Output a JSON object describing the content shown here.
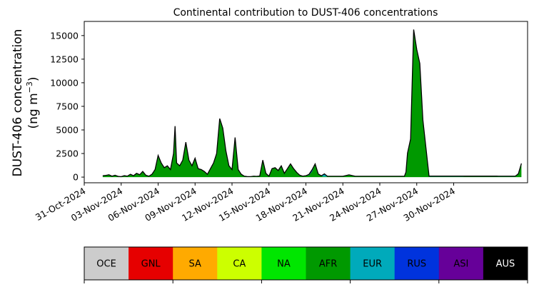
{
  "chart_data": {
    "type": "area",
    "title": "Continental contribution to DUST-406 concentrations",
    "ylabel_line1": "DUST-406 concentration",
    "ylabel_line2_prefix": "(ng m",
    "ylabel_line2_sup": "−3",
    "ylabel_line2_suffix": ")",
    "xlabel": "",
    "x_unit": "date",
    "xlim": [
      "2024-10-31",
      "2024-12-06"
    ],
    "ylim": [
      -600,
      16500
    ],
    "yticks": [
      0,
      2500,
      5000,
      7500,
      10000,
      12500,
      15000
    ],
    "ytick_labels": [
      "0",
      "2500",
      "5000",
      "7500",
      "10000",
      "12500",
      "15000"
    ],
    "xticks": [
      "2024-10-31",
      "2024-11-03",
      "2024-11-06",
      "2024-11-09",
      "2024-11-12",
      "2024-11-15",
      "2024-11-18",
      "2024-11-21",
      "2024-11-24",
      "2024-11-27",
      "2024-11-30"
    ],
    "xtick_labels": [
      "31-Oct-2024",
      "03-Nov-2024",
      "06-Nov-2024",
      "09-Nov-2024",
      "12-Nov-2024",
      "15-Nov-2024",
      "18-Nov-2024",
      "21-Nov-2024",
      "24-Nov-2024",
      "27-Nov-2024",
      "30-Nov-2024"
    ],
    "grid": false,
    "legend_placement": "bottom",
    "series": [
      {
        "name": "OCE",
        "color": "#cccccc",
        "x": [
          "2024-11-01T12:00",
          "2024-12-05T12:00"
        ],
        "values": [
          0,
          0
        ]
      },
      {
        "name": "GNL",
        "color": "#e60000",
        "x": [
          "2024-11-01T12:00",
          "2024-12-05T12:00"
        ],
        "values": [
          0,
          0
        ]
      },
      {
        "name": "SA",
        "color": "#ffaa00",
        "x": [
          "2024-11-01T12:00",
          "2024-12-05T12:00"
        ],
        "values": [
          0,
          0
        ]
      },
      {
        "name": "CA",
        "color": "#ccff00",
        "x": [
          "2024-11-01T12:00",
          "2024-12-05T12:00"
        ],
        "values": [
          0,
          0
        ]
      },
      {
        "name": "NA",
        "color": "#00e600",
        "x": [
          "2024-11-01T12:00",
          "2024-12-05T12:00"
        ],
        "values": [
          0,
          0
        ]
      },
      {
        "name": "AFR",
        "color": "#009900",
        "x": [
          "2024-11-01T12:00",
          "2024-11-01T20:00",
          "2024-11-02T00:00",
          "2024-11-02T06:00",
          "2024-11-02T12:00",
          "2024-11-02T18:00",
          "2024-11-03T00:00",
          "2024-11-03T06:00",
          "2024-11-03T12:00",
          "2024-11-03T18:00",
          "2024-11-04T00:00",
          "2024-11-04T06:00",
          "2024-11-04T12:00",
          "2024-11-04T18:00",
          "2024-11-05T00:00",
          "2024-11-05T06:00",
          "2024-11-05T12:00",
          "2024-11-05T18:00",
          "2024-11-06T00:00",
          "2024-11-06T06:00",
          "2024-11-06T12:00",
          "2024-11-06T18:00",
          "2024-11-07T00:00",
          "2024-11-07T06:00",
          "2024-11-07T09:00",
          "2024-11-07T12:00",
          "2024-11-07T18:00",
          "2024-11-08T00:00",
          "2024-11-08T06:00",
          "2024-11-08T12:00",
          "2024-11-08T18:00",
          "2024-11-09T00:00",
          "2024-11-09T06:00",
          "2024-11-09T12:00",
          "2024-11-09T18:00",
          "2024-11-10T00:00",
          "2024-11-10T06:00",
          "2024-11-10T12:00",
          "2024-11-10T18:00",
          "2024-11-11T00:00",
          "2024-11-11T06:00",
          "2024-11-11T12:00",
          "2024-11-11T18:00",
          "2024-11-12T00:00",
          "2024-11-12T06:00",
          "2024-11-12T12:00",
          "2024-11-12T18:00",
          "2024-11-13T00:00",
          "2024-11-13T06:00",
          "2024-11-13T12:00",
          "2024-11-13T18:00",
          "2024-11-14T00:00",
          "2024-11-14T06:00",
          "2024-11-14T12:00",
          "2024-11-14T18:00",
          "2024-11-15T00:00",
          "2024-11-15T06:00",
          "2024-11-15T12:00",
          "2024-11-15T18:00",
          "2024-11-16T00:00",
          "2024-11-16T06:00",
          "2024-11-16T12:00",
          "2024-11-16T18:00",
          "2024-11-17T00:00",
          "2024-11-17T06:00",
          "2024-11-17T12:00",
          "2024-11-17T18:00",
          "2024-11-18T00:00",
          "2024-11-18T06:00",
          "2024-11-18T12:00",
          "2024-11-18T18:00",
          "2024-11-19T00:00",
          "2024-11-19T06:00",
          "2024-11-19T12:00",
          "2024-11-19T18:00",
          "2024-11-20T00:00",
          "2024-11-20T12:00",
          "2024-11-21T00:00",
          "2024-11-21T12:00",
          "2024-11-22T00:00",
          "2024-11-22T12:00",
          "2024-11-23T00:00",
          "2024-11-23T12:00",
          "2024-11-24T00:00",
          "2024-11-24T12:00",
          "2024-11-25T00:00",
          "2024-11-25T06:00",
          "2024-11-25T12:00",
          "2024-11-25T18:00",
          "2024-11-26T00:00",
          "2024-11-26T03:00",
          "2024-11-26T06:00",
          "2024-11-26T12:00",
          "2024-11-26T18:00",
          "2024-11-27T00:00",
          "2024-11-27T06:00",
          "2024-11-27T12:00",
          "2024-11-28T00:00",
          "2024-11-28T12:00",
          "2024-11-29T00:00",
          "2024-11-29T12:00",
          "2024-11-30T00:00",
          "2024-11-30T12:00",
          "2024-12-01T00:00",
          "2024-12-01T12:00",
          "2024-12-02T00:00",
          "2024-12-02T12:00",
          "2024-12-03T00:00",
          "2024-12-03T12:00",
          "2024-12-04T00:00",
          "2024-12-04T12:00",
          "2024-12-05T00:00",
          "2024-12-05T06:00",
          "2024-12-05T12:00"
        ],
        "values": [
          150,
          200,
          250,
          100,
          200,
          80,
          50,
          150,
          100,
          300,
          150,
          400,
          250,
          600,
          200,
          100,
          300,
          800,
          2300,
          1500,
          1000,
          1200,
          800,
          2500,
          5400,
          1500,
          1200,
          1800,
          3700,
          1800,
          1200,
          2000,
          900,
          800,
          600,
          300,
          900,
          1500,
          2500,
          6200,
          5200,
          2800,
          1200,
          800,
          4200,
          800,
          300,
          100,
          50,
          50,
          100,
          80,
          120,
          1800,
          400,
          100,
          900,
          1000,
          700,
          1200,
          400,
          900,
          1400,
          900,
          500,
          200,
          100,
          150,
          200,
          600,
          1400,
          300,
          100,
          50,
          50,
          50,
          50,
          50,
          200,
          50,
          50,
          50,
          50,
          50,
          50,
          50,
          50,
          50,
          50,
          50,
          500,
          2500,
          4000,
          15600,
          13500,
          12000,
          6000,
          50,
          50,
          50,
          50,
          50,
          50,
          50,
          50,
          50,
          50,
          50,
          50,
          50,
          50,
          50,
          300,
          1400
        ]
      },
      {
        "name": "EUR",
        "color": "#00aabb",
        "x": [
          "2024-11-01T12:00",
          "2024-11-18T00:00",
          "2024-11-19T06:00",
          "2024-11-19T12:00",
          "2024-11-19T18:00",
          "2024-11-20T00:00",
          "2024-12-05T12:00"
        ],
        "values": [
          0,
          0,
          0,
          250,
          0,
          0,
          0
        ]
      },
      {
        "name": "RUS",
        "color": "#0033dd",
        "x": [
          "2024-11-01T12:00",
          "2024-11-18T00:00",
          "2024-11-18T12:00",
          "2024-11-18T18:00",
          "2024-11-19T00:00",
          "2024-11-27T12:00",
          "2024-11-28T00:00",
          "2024-12-05T12:00"
        ],
        "values": [
          0,
          0,
          180,
          0,
          40,
          40,
          60,
          50
        ]
      },
      {
        "name": "ASI",
        "color": "#660099",
        "x": [
          "2024-11-01T12:00",
          "2024-12-05T12:00"
        ],
        "values": [
          0,
          0
        ]
      },
      {
        "name": "AUS",
        "color": "#000000",
        "x": [
          "2024-11-01T12:00",
          "2024-12-05T12:00"
        ],
        "values": [
          0,
          0
        ]
      }
    ],
    "legend": [
      {
        "label": "OCE",
        "color": "#cccccc",
        "text_color": "#000000"
      },
      {
        "label": "GNL",
        "color": "#e60000",
        "text_color": "#000000"
      },
      {
        "label": "SA",
        "color": "#ffaa00",
        "text_color": "#000000"
      },
      {
        "label": "CA",
        "color": "#ccff00",
        "text_color": "#000000"
      },
      {
        "label": "NA",
        "color": "#00e600",
        "text_color": "#000000"
      },
      {
        "label": "AFR",
        "color": "#009900",
        "text_color": "#000000"
      },
      {
        "label": "EUR",
        "color": "#00aabb",
        "text_color": "#000000"
      },
      {
        "label": "RUS",
        "color": "#0033dd",
        "text_color": "#000000"
      },
      {
        "label": "ASI",
        "color": "#660099",
        "text_color": "#000000"
      },
      {
        "label": "AUS",
        "color": "#000000",
        "text_color": "#ffffff"
      }
    ]
  }
}
